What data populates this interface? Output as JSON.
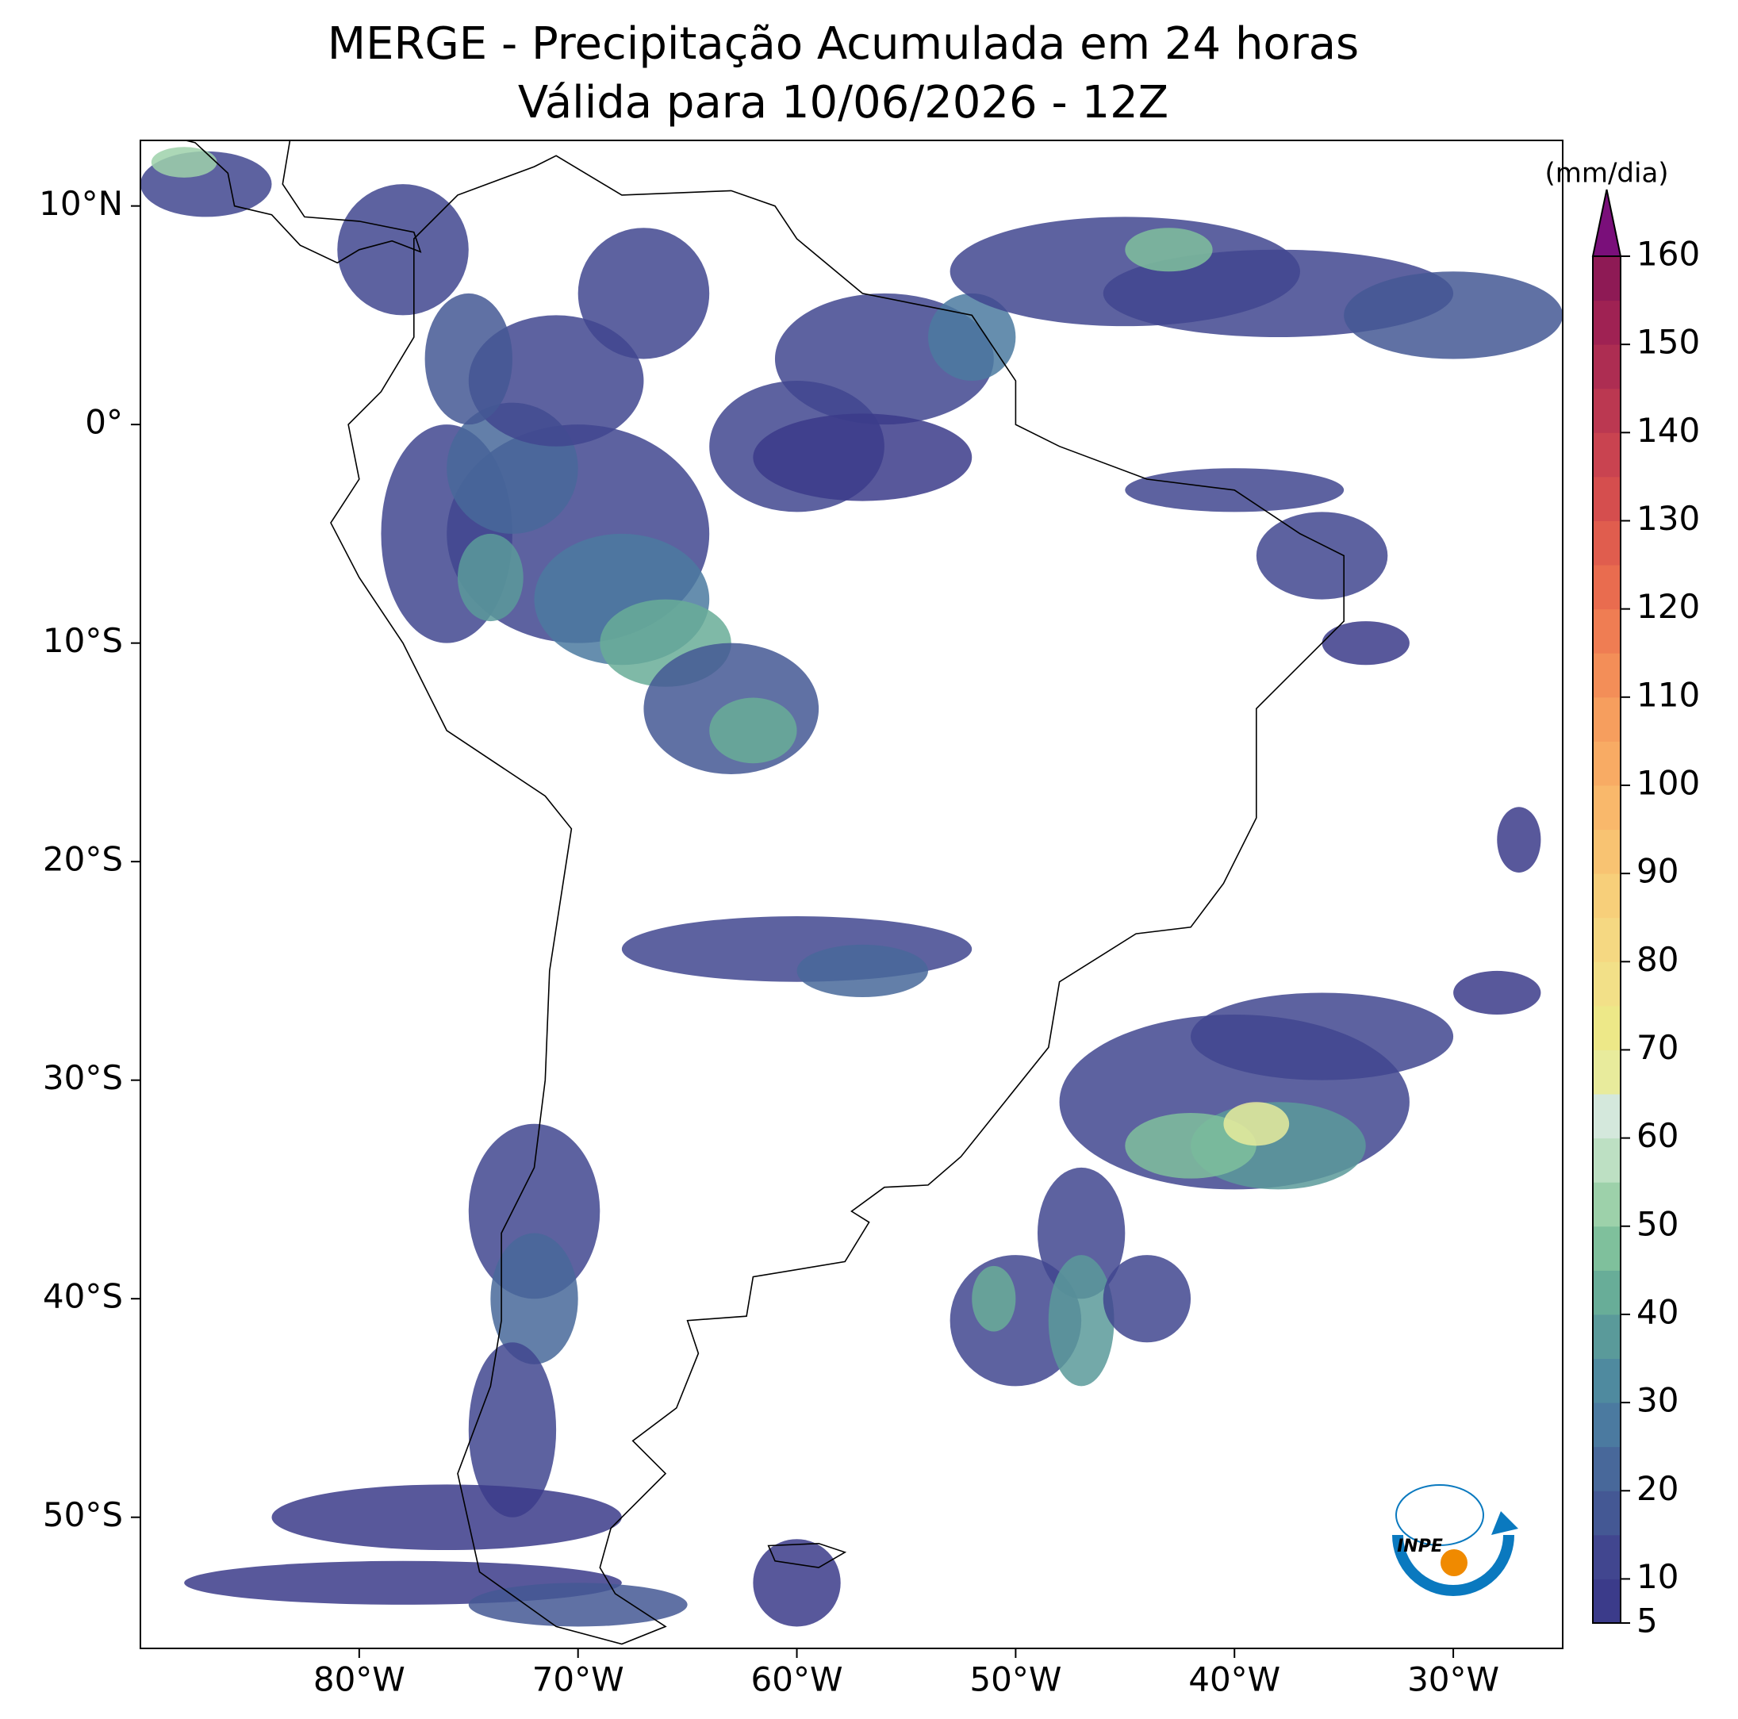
{
  "chart_data": {
    "type": "map",
    "title": "MERGE - Precipitação Acumulada em 24 horas",
    "subtitle": "Válida para 10/06/2026 - 12Z",
    "xlim": [
      -90,
      -25
    ],
    "ylim": [
      -56,
      13
    ],
    "xticks": [
      {
        "value": -80,
        "label": "80°W"
      },
      {
        "value": -70,
        "label": "70°W"
      },
      {
        "value": -60,
        "label": "60°W"
      },
      {
        "value": -50,
        "label": "50°W"
      },
      {
        "value": -40,
        "label": "40°W"
      },
      {
        "value": -30,
        "label": "30°W"
      }
    ],
    "yticks": [
      {
        "value": 10,
        "label": "10°N"
      },
      {
        "value": 0,
        "label": "0°"
      },
      {
        "value": -10,
        "label": "10°S"
      },
      {
        "value": -20,
        "label": "20°S"
      },
      {
        "value": -30,
        "label": "30°S"
      },
      {
        "value": -40,
        "label": "40°S"
      },
      {
        "value": -50,
        "label": "50°S"
      }
    ],
    "colorbar": {
      "label": "(mm/dia)",
      "levels": [
        5,
        10,
        15,
        20,
        25,
        30,
        35,
        40,
        45,
        50,
        55,
        60,
        65,
        70,
        75,
        80,
        85,
        90,
        95,
        100,
        105,
        110,
        115,
        120,
        125,
        130,
        135,
        140,
        145,
        150,
        155,
        160
      ],
      "colors": [
        "#3b3b8a",
        "#41468f",
        "#445894",
        "#48689a",
        "#4b7aa0",
        "#4f8a9f",
        "#5a9a9a",
        "#68ad98",
        "#7fc09c",
        "#9dd1aa",
        "#bde0c3",
        "#d4e8dc",
        "#e8eb9c",
        "#ede888",
        "#f2e088",
        "#f5d882",
        "#f7cf7a",
        "#f8c372",
        "#f9b86b",
        "#f8ab64",
        "#f69e5e",
        "#f38e58",
        "#ef7d53",
        "#e96c4f",
        "#e05d4e",
        "#d54e4e",
        "#c94350",
        "#bb3851",
        "#ad2d52",
        "#9f2253",
        "#8e1a55"
      ],
      "extend_color": "#7a0f7a",
      "ticks": [
        5,
        10,
        20,
        30,
        40,
        50,
        60,
        70,
        80,
        90,
        100,
        110,
        120,
        130,
        140,
        150,
        160
      ]
    }
  },
  "logo": {
    "text": "INPE"
  }
}
